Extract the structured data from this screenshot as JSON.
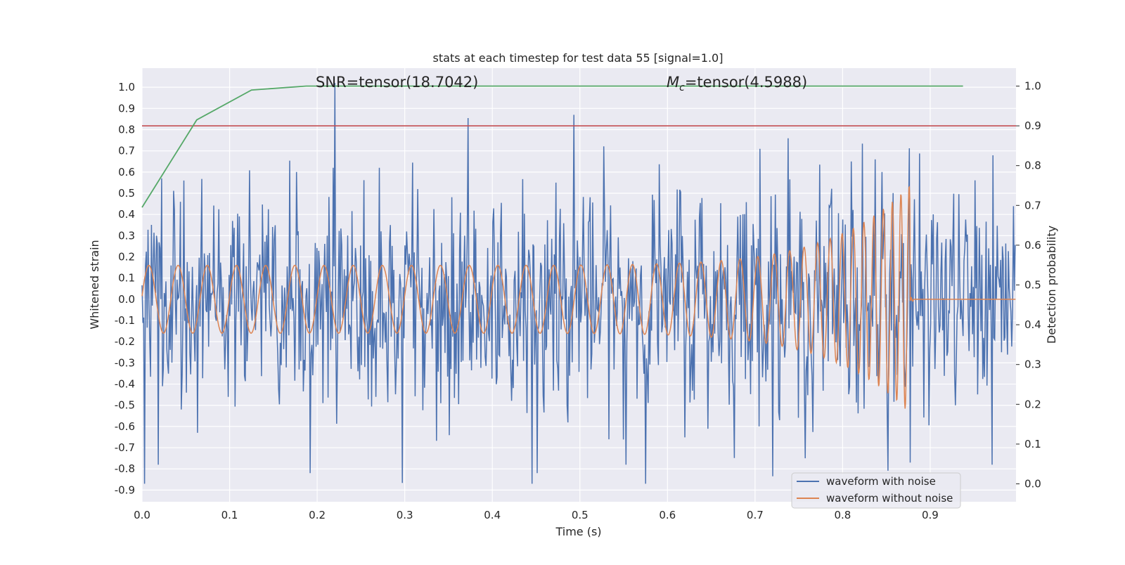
{
  "chart_data": {
    "type": "line",
    "title": "stats at each timestep for test data 55 [signal=1.0]",
    "xlabel": "Time (s)",
    "ylabel": "Whitened strain",
    "y2label": "Detection probability",
    "xlim": [
      0.0,
      0.998
    ],
    "ylim": [
      -0.955,
      1.09
    ],
    "y2lim": [
      -0.045,
      1.045
    ],
    "x_ticks": [
      "0.0",
      "0.1",
      "0.2",
      "0.3",
      "0.4",
      "0.5",
      "0.6",
      "0.7",
      "0.8",
      "0.9"
    ],
    "y_ticks": [
      "1.0",
      "0.9",
      "0.8",
      "0.7",
      "0.6",
      "0.5",
      "0.4",
      "0.3",
      "0.2",
      "0.1",
      "0.0",
      "-0.1",
      "-0.2",
      "-0.3",
      "-0.4",
      "-0.5",
      "-0.6",
      "-0.7",
      "-0.8",
      "-0.9"
    ],
    "y2_ticks": [
      "1.0",
      "0.9",
      "0.8",
      "0.7",
      "0.6",
      "0.5",
      "0.4",
      "0.3",
      "0.2",
      "0.1",
      "0.0"
    ],
    "grid": true,
    "annotations": {
      "snr": "SNR=tensor(18.7042)",
      "mc_symbol": "M",
      "mc_subscript": "c",
      "mc_value": "=tensor(4.5988)"
    },
    "series": [
      {
        "name": "waveform with noise",
        "axis": "left",
        "color": "#4c72b0",
        "description": "noisy whitened strain, approx. range -0.87 to 1.02, dense oscillation over full time span",
        "peaks": [
          {
            "x": 0.003,
            "y": -0.87
          },
          {
            "x": 0.022,
            "y": 0.57
          },
          {
            "x": 0.048,
            "y": 0.56
          },
          {
            "x": 0.063,
            "y": -0.63
          },
          {
            "x": 0.192,
            "y": -0.82
          },
          {
            "x": 0.218,
            "y": 0.62
          },
          {
            "x": 0.22,
            "y": 1.02
          },
          {
            "x": 0.271,
            "y": 0.62
          },
          {
            "x": 0.445,
            "y": -0.87
          },
          {
            "x": 0.451,
            "y": -0.82
          },
          {
            "x": 0.473,
            "y": 0.55
          },
          {
            "x": 0.493,
            "y": 0.87
          },
          {
            "x": 0.553,
            "y": -0.78
          },
          {
            "x": 0.706,
            "y": 0.71
          },
          {
            "x": 0.757,
            "y": -0.75
          },
          {
            "x": 0.81,
            "y": 0.65
          },
          {
            "x": 0.845,
            "y": 0.6
          },
          {
            "x": 0.877,
            "y": -0.77
          },
          {
            "x": 0.971,
            "y": -0.78
          }
        ]
      },
      {
        "name": "waveform without noise",
        "axis": "left",
        "color": "#dd8452",
        "description": "chirp signal: amplitude grows from ~0.16 to ~0.54 while frequency increases until merger at ~0.877 s, then flat at 0",
        "merger_time": 0.877,
        "amplitude_start": 0.16,
        "amplitude_peak": 0.54,
        "freq_start_hz": 30,
        "freq_end_hz": 110
      },
      {
        "name": "detection probability",
        "axis": "right",
        "color": "#55a868",
        "x": [
          0.0,
          0.0625,
          0.125,
          0.1875,
          0.25,
          0.3125,
          0.375,
          0.4375,
          0.5,
          0.5625,
          0.625,
          0.6875,
          0.75,
          0.8125,
          0.875,
          0.9375
        ],
        "y": [
          0.695,
          0.915,
          0.99,
          1.0,
          1.0,
          1.0,
          1.0,
          1.0,
          1.0,
          1.0,
          1.0,
          1.0,
          1.0,
          1.0,
          1.0,
          1.0
        ]
      },
      {
        "name": "detection threshold",
        "axis": "right",
        "color": "#c44e52",
        "y": 0.9
      }
    ],
    "legend": {
      "placement": "lower right",
      "entries": [
        {
          "label": "waveform with noise",
          "color": "#4c72b0"
        },
        {
          "label": "waveform without noise",
          "color": "#dd8452"
        }
      ]
    }
  }
}
